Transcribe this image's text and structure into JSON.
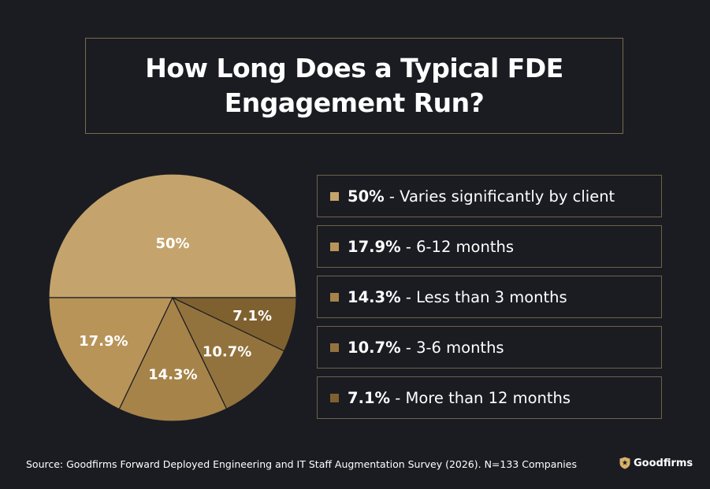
{
  "header": {
    "title": "How Long Does a Typical FDE Engagement Run?"
  },
  "chart_data": {
    "type": "pie",
    "title": "How Long Does a Typical FDE Engagement Run?",
    "slices": [
      {
        "label": "Varies significantly by client",
        "value": 50,
        "display": "50%",
        "legend_pct": "50%",
        "color": "#c4a46c"
      },
      {
        "label": "6-12 months",
        "value": 17.9,
        "display": "17.9%",
        "legend_pct": "17.9%",
        "color": "#b89459"
      },
      {
        "label": "Less than 3 months",
        "value": 14.3,
        "display": "14.3%",
        "legend_pct": "14.3%",
        "color": "#a68349"
      },
      {
        "label": "3-6 months",
        "value": 10.7,
        "display": "10.7%",
        "legend_pct": "10.7%",
        "color": "#93733d"
      },
      {
        "label": "More than 12 months",
        "value": 7.1,
        "display": "7.1%",
        "legend_pct": "7.1%",
        "color": "#7f602f"
      }
    ],
    "legend_placement": "right",
    "slice_border_color": "#1b1c22"
  },
  "footer": {
    "source": "Source: Goodfirms Forward Deployed Engineering and IT Staff Augmentation Survey (2026). N=133 Companies",
    "brand": "Goodfirms",
    "brand_icon": "shield-star-icon",
    "brand_color": "#d6b16a"
  }
}
